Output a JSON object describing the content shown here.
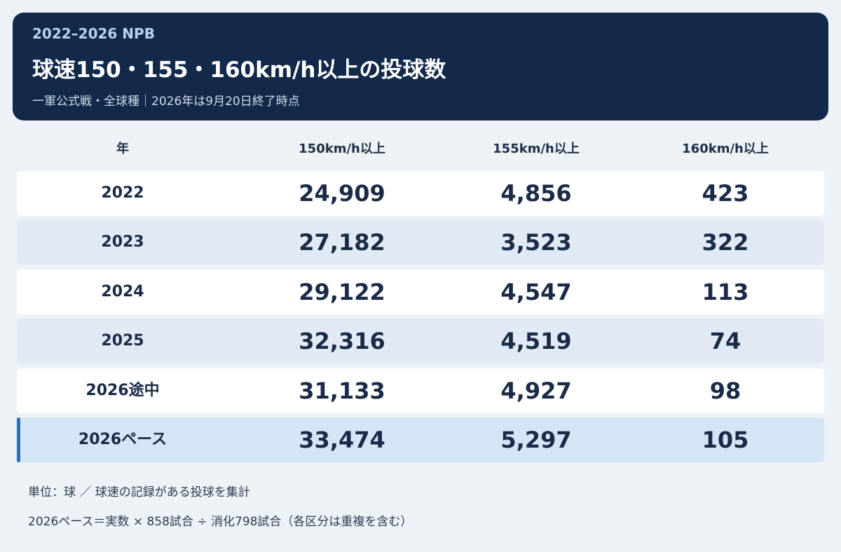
{
  "header": {
    "eyebrow": "2022–2026 NPB",
    "title": "球速150・155・160km/h以上の投球数",
    "subtitle": "一軍公式戦・全球種｜2026年は9月20日終了時点"
  },
  "table": {
    "columns": [
      "年",
      "150km/h以上",
      "155km/h以上",
      "160km/h以上"
    ],
    "rows": [
      [
        "2022",
        "24,909",
        "4,856",
        "423"
      ],
      [
        "2023",
        "27,182",
        "3,523",
        "322"
      ],
      [
        "2024",
        "29,122",
        "4,547",
        "113"
      ],
      [
        "2025",
        "32,316",
        "4,519",
        "74"
      ],
      [
        "2026途中",
        "31,133",
        "4,927",
        "98"
      ],
      [
        "2026ペース",
        "33,474",
        "5,297",
        "105"
      ]
    ]
  },
  "footnotes": [
    "単位：球 ／ 球速の記録がある投球を集計",
    "2026ペース＝実数 × 858試合 ÷ 消化798試合（各区分は重複を含む）"
  ]
}
